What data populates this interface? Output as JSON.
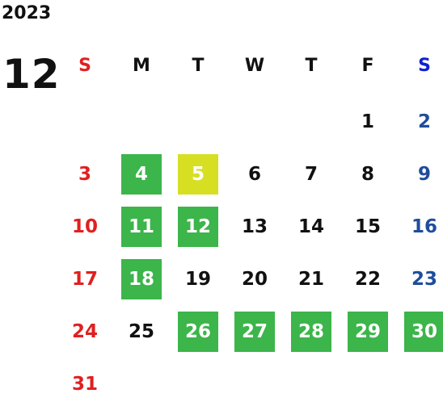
{
  "calendar": {
    "year": "2023",
    "month": "12",
    "weekdays": [
      "S",
      "M",
      "T",
      "W",
      "T",
      "F",
      "S"
    ],
    "colors": {
      "sunday": "#e02020",
      "saturday_header": "#1020d0",
      "saturday": "#1f4d9c",
      "highlight_green": "#3cb54a",
      "highlight_yellow": "#d7df23"
    },
    "first_weekday_index": 5,
    "days_in_month": 31,
    "highlighted_green": [
      4,
      11,
      12,
      18,
      26,
      27,
      28,
      29,
      30
    ],
    "highlighted_yellow": [
      5
    ]
  }
}
